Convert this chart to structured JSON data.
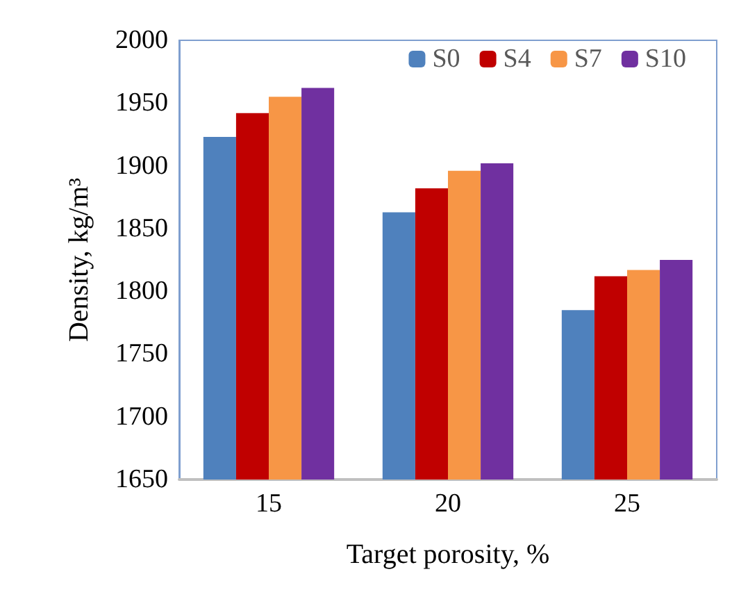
{
  "chart_data": {
    "type": "bar",
    "xlabel": "Target porosity, %",
    "ylabel": "Density, kg/m³",
    "categories": [
      "15",
      "20",
      "25"
    ],
    "series": [
      {
        "name": "S0",
        "color": "#4f81bd",
        "values": [
          1923,
          1863,
          1785
        ]
      },
      {
        "name": "S4",
        "color": "#c00000",
        "values": [
          1942,
          1882,
          1812
        ]
      },
      {
        "name": "S7",
        "color": "#f79646",
        "values": [
          1955,
          1896,
          1817
        ]
      },
      {
        "name": "S10",
        "color": "#7030a0",
        "values": [
          1962,
          1902,
          1825
        ]
      }
    ],
    "ylim": [
      1650,
      2000
    ],
    "yticks": [
      1650,
      1700,
      1750,
      1800,
      1850,
      1900,
      1950,
      2000
    ],
    "grid": false,
    "legend": "top right"
  }
}
